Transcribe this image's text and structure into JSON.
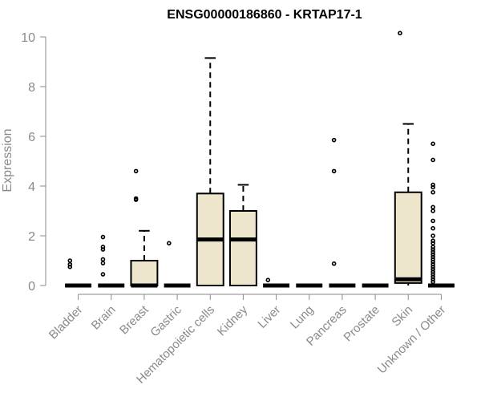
{
  "chart_data": {
    "type": "boxplot",
    "title": "ENSG00000186860 - KRTAP17-1",
    "ylabel": "Expression",
    "xlabel": "",
    "ylim": [
      0,
      10
    ],
    "yticks": [
      0,
      2,
      4,
      6,
      8,
      10
    ],
    "grid": false,
    "colors": {
      "box_fill": "#ede6cc",
      "stroke": "#000000",
      "axis": "#8a8a8a",
      "title": "#000000"
    },
    "categories": [
      "Bladder",
      "Brain",
      "Breast",
      "Gastric",
      "Hematopoietic cells",
      "Kidney",
      "Liver",
      "Lung",
      "Pancreas",
      "Prostate",
      "Skin",
      "Unknown / Other"
    ],
    "boxes": [
      {
        "category": "Bladder",
        "min": 0,
        "q1": 0,
        "median": 0,
        "q3": 0,
        "max": 0,
        "outliers": [
          0.75,
          0.85,
          1.0
        ]
      },
      {
        "category": "Brain",
        "min": 0,
        "q1": 0,
        "median": 0,
        "q3": 0,
        "max": 0,
        "outliers": [
          0.45,
          0.9,
          1.05,
          1.45,
          1.55,
          1.95
        ]
      },
      {
        "category": "Breast",
        "min": 0,
        "q1": 0,
        "median": 0,
        "q3": 1.0,
        "max": 2.2,
        "outliers": [
          3.45,
          3.5,
          4.6
        ]
      },
      {
        "category": "Gastric",
        "min": 0,
        "q1": 0,
        "median": 0,
        "q3": 0,
        "max": 0,
        "outliers": [
          1.7
        ]
      },
      {
        "category": "Hematopoietic cells",
        "min": 0,
        "q1": 0,
        "median": 1.85,
        "q3": 3.7,
        "max": 9.15,
        "outliers": []
      },
      {
        "category": "Kidney",
        "min": 0,
        "q1": 0,
        "median": 1.85,
        "q3": 3.0,
        "max": 4.05,
        "outliers": []
      },
      {
        "category": "Liver",
        "min": 0,
        "q1": 0,
        "median": 0,
        "q3": 0,
        "max": 0,
        "outliers": [
          0.22
        ]
      },
      {
        "category": "Lung",
        "min": 0,
        "q1": 0,
        "median": 0,
        "q3": 0,
        "max": 0,
        "outliers": []
      },
      {
        "category": "Pancreas",
        "min": 0,
        "q1": 0,
        "median": 0,
        "q3": 0,
        "max": 0,
        "outliers": [
          0.88,
          4.6,
          5.85
        ]
      },
      {
        "category": "Prostate",
        "min": 0,
        "q1": 0,
        "median": 0,
        "q3": 0,
        "max": 0,
        "outliers": []
      },
      {
        "category": "Skin",
        "min": 0,
        "q1": 0.1,
        "median": 0.25,
        "q3": 3.75,
        "max": 6.5,
        "outliers": [
          10.15
        ]
      },
      {
        "category": "Unknown / Other",
        "min": 0,
        "q1": 0,
        "median": 0,
        "q3": 0,
        "max": 0,
        "outliers": [
          0.15,
          0.25,
          0.35,
          0.45,
          0.55,
          0.65,
          0.75,
          0.85,
          0.95,
          1.05,
          1.15,
          1.25,
          1.35,
          1.45,
          1.55,
          1.7,
          1.8,
          2.0,
          2.3,
          2.6,
          3.0,
          3.15,
          3.75,
          3.95,
          4.05,
          5.05,
          5.7
        ]
      }
    ]
  }
}
